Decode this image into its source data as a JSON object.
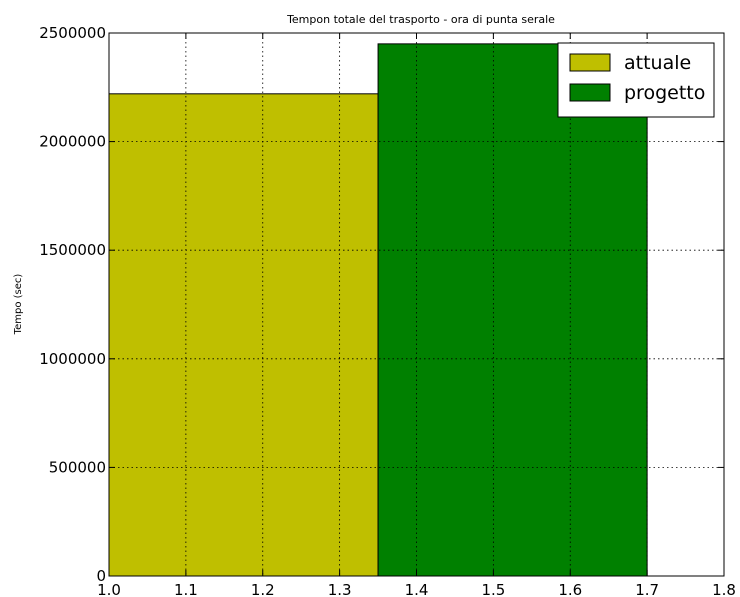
{
  "chart_data": {
    "type": "bar",
    "title": "Tempon totale del trasporto - ora di punta serale",
    "xlabel": "",
    "ylabel": "Tempo (sec)",
    "xlim": [
      1.0,
      1.8
    ],
    "ylim": [
      0,
      2500000
    ],
    "x_ticks": [
      "1.0",
      "1.1",
      "1.2",
      "1.3",
      "1.4",
      "1.5",
      "1.6",
      "1.7",
      "1.8"
    ],
    "y_ticks": [
      "0",
      "500000",
      "1000000",
      "1500000",
      "2000000",
      "2500000"
    ],
    "grid": true,
    "legend_position": "top-right",
    "series": [
      {
        "name": "attuale",
        "x_start": 1.0,
        "x_end": 1.35,
        "value": 2220000,
        "color": "#bfbf00"
      },
      {
        "name": "progetto",
        "x_start": 1.35,
        "x_end": 1.7,
        "value": 2450000,
        "color": "#008000"
      }
    ]
  }
}
